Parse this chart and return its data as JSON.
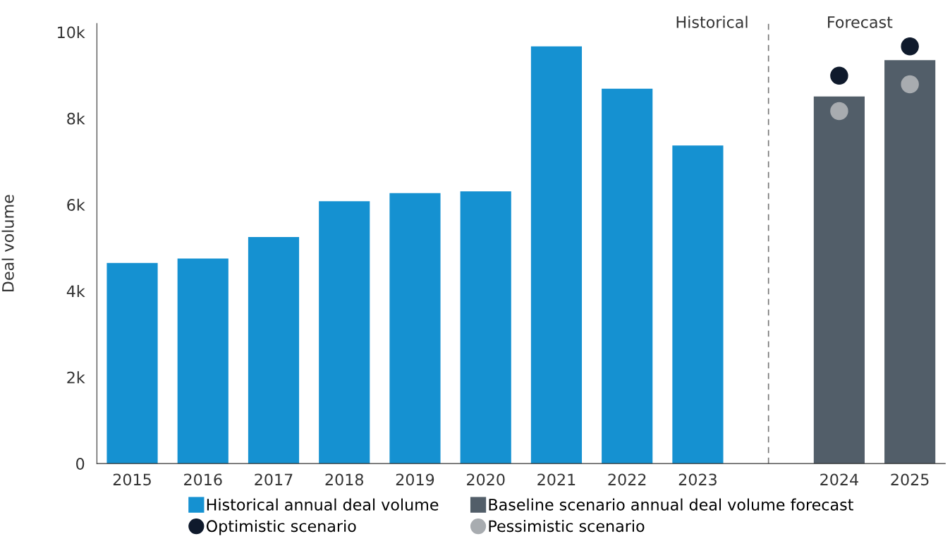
{
  "chart_data": {
    "type": "bar",
    "ylabel": "Deal volume",
    "categories": [
      "2015",
      "2016",
      "2017",
      "2018",
      "2019",
      "2020",
      "2021",
      "2022",
      "2023",
      null,
      "2024",
      "2025"
    ],
    "series": [
      {
        "name": "Historical annual deal volume",
        "color": "#1591d1",
        "values": [
          4650,
          4750,
          5250,
          6080,
          6270,
          6310,
          9670,
          8690,
          7370,
          null,
          null,
          null
        ]
      },
      {
        "name": "Baseline scenario annual deal volume forecast",
        "color": "#525e69",
        "values": [
          null,
          null,
          null,
          null,
          null,
          null,
          null,
          null,
          null,
          null,
          8510,
          9350
        ]
      },
      {
        "name": "Optimistic scenario",
        "type": "scatter",
        "color": "#0f1a2c",
        "values": [
          null,
          null,
          null,
          null,
          null,
          null,
          null,
          null,
          null,
          null,
          8990,
          9670
        ]
      },
      {
        "name": "Pessimistic scenario",
        "type": "scatter",
        "color": "#a8acb0",
        "values": [
          null,
          null,
          null,
          null,
          null,
          null,
          null,
          null,
          null,
          null,
          8170,
          8790
        ]
      }
    ],
    "ylim": [
      0,
      10200
    ],
    "yticks": [
      0,
      {
        "value": 2000,
        "label": "2k"
      },
      {
        "value": 4000,
        "label": "4k"
      },
      {
        "value": 6000,
        "label": "6k"
      },
      {
        "value": 8000,
        "label": "8k"
      },
      {
        "value": 10000,
        "label": "10k"
      }
    ],
    "ref_lines": [
      {
        "axis": "x",
        "line_style": "dashed",
        "color": "#777777"
      }
    ],
    "annotations": [
      "Historical",
      "Forecast"
    ],
    "marker": "circle",
    "legend": "bottom"
  }
}
